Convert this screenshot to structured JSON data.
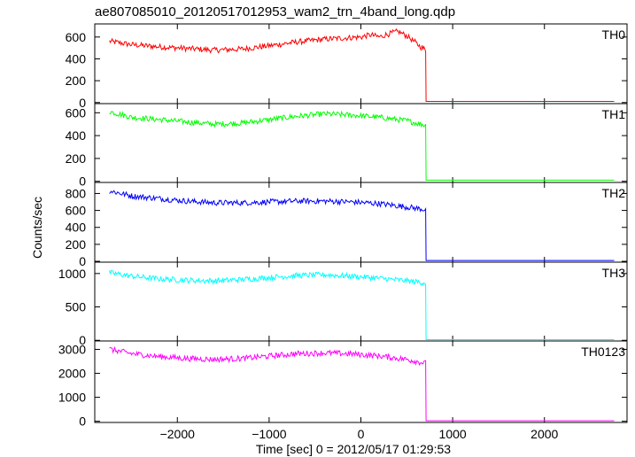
{
  "chart_data": {
    "type": "line",
    "title": "ae807085010_20120517012953_wam2_trn_4band_long.qdp",
    "xlabel": "Time [sec] 0 = 2012/05/17 01:29:53",
    "ylabel": "Counts/sec",
    "xlim": [
      -2900,
      2900
    ],
    "xticks": [
      -2000,
      -1000,
      0,
      1000,
      2000
    ],
    "xtick_labels": [
      "−2000",
      "−1000",
      "0",
      "1000",
      "2000"
    ],
    "data_end_time": 710,
    "x_end": 2760,
    "panels": [
      {
        "name": "TH0",
        "color": "#ff0000",
        "ylim": [
          -10,
          720
        ],
        "yticks": [
          0,
          200,
          400,
          600
        ],
        "x": [
          -2740,
          -2500,
          -2200,
          -1900,
          -1600,
          -1300,
          -1000,
          -700,
          -400,
          -200,
          0,
          100,
          200,
          300,
          400,
          500,
          600,
          700
        ],
        "y": [
          560,
          530,
          510,
          495,
          480,
          490,
          520,
          555,
          580,
          590,
          600,
          620,
          600,
          630,
          650,
          610,
          540,
          480
        ],
        "after": 10
      },
      {
        "name": "TH1",
        "color": "#00ff00",
        "ylim": [
          -10,
          680
        ],
        "yticks": [
          0,
          200,
          400,
          600
        ],
        "x": [
          -2740,
          -2500,
          -2200,
          -1900,
          -1600,
          -1300,
          -1000,
          -700,
          -400,
          -100,
          200,
          500,
          700
        ],
        "y": [
          610,
          560,
          540,
          520,
          500,
          510,
          540,
          570,
          590,
          580,
          560,
          530,
          490
        ],
        "after": 10
      },
      {
        "name": "TH2",
        "color": "#0000ff",
        "ylim": [
          -10,
          930
        ],
        "yticks": [
          0,
          200,
          400,
          600,
          800
        ],
        "x": [
          -2740,
          -2500,
          -2200,
          -1900,
          -1600,
          -1300,
          -1000,
          -700,
          -400,
          -100,
          200,
          500,
          700
        ],
        "y": [
          830,
          770,
          740,
          710,
          690,
          690,
          700,
          710,
          710,
          700,
          680,
          640,
          610
        ],
        "after": 10
      },
      {
        "name": "TH3",
        "color": "#00ffff",
        "ylim": [
          -10,
          1170
        ],
        "yticks": [
          0,
          500,
          1000
        ],
        "x": [
          -2740,
          -2500,
          -2200,
          -1900,
          -1600,
          -1300,
          -1000,
          -700,
          -400,
          -100,
          200,
          500,
          700
        ],
        "y": [
          1010,
          960,
          920,
          900,
          890,
          910,
          940,
          970,
          980,
          960,
          930,
          890,
          860
        ],
        "after": 10
      },
      {
        "name": "TH0123",
        "color": "#ff00ff",
        "ylim": [
          -50,
          3350
        ],
        "yticks": [
          0,
          1000,
          2000,
          3000
        ],
        "x": [
          -2740,
          -2500,
          -2200,
          -1900,
          -1600,
          -1300,
          -1000,
          -700,
          -400,
          -100,
          200,
          500,
          700
        ],
        "y": [
          3000,
          2820,
          2700,
          2620,
          2580,
          2620,
          2720,
          2820,
          2850,
          2810,
          2720,
          2580,
          2420
        ],
        "after": 20
      }
    ]
  }
}
